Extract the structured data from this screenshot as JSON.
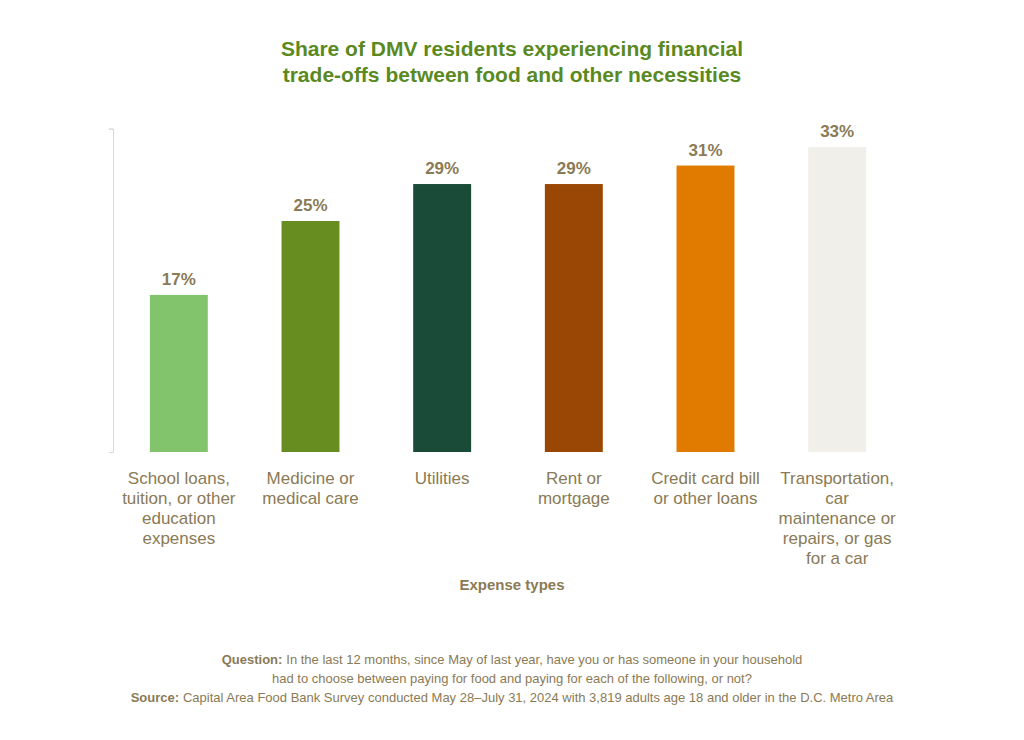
{
  "chart_data": {
    "type": "bar",
    "title": "Share of DMV residents experiencing financial trade-offs between food and other necessities",
    "x_label": "Expense types",
    "categories": [
      "School loans, tuition, or other education expenses",
      "Medicine or medical care",
      "Utilities",
      "Rent or mortgage",
      "Credit card bill or other loans",
      "Transportation, car maintenance or repairs, or gas for a car"
    ],
    "values": [
      17,
      25,
      29,
      29,
      31,
      33
    ],
    "value_labels": [
      "17%",
      "25%",
      "29%",
      "29%",
      "31%",
      "33%"
    ],
    "colors": [
      "#82c46c",
      "#678c1f",
      "#1a4a38",
      "#9a4705",
      "#e07b00",
      "#f0efea"
    ],
    "ylim": [
      0,
      35
    ],
    "yticks": [
      0,
      35
    ],
    "tick_labels": "x",
    "data_labels": true,
    "grid": false,
    "question": {
      "label": "Question:",
      "lines": [
        "In the last 12 months, since May of last year, have you or has someone in your household",
        "had to choose between paying for food and paying for each of the following, or not?"
      ]
    },
    "source": {
      "label": "Source:",
      "text": "Capital Area Food Bank Survey conducted May 28–July 31, 2024 with 3,819 adults age 18 and older in the D.C. Metro Area"
    }
  }
}
